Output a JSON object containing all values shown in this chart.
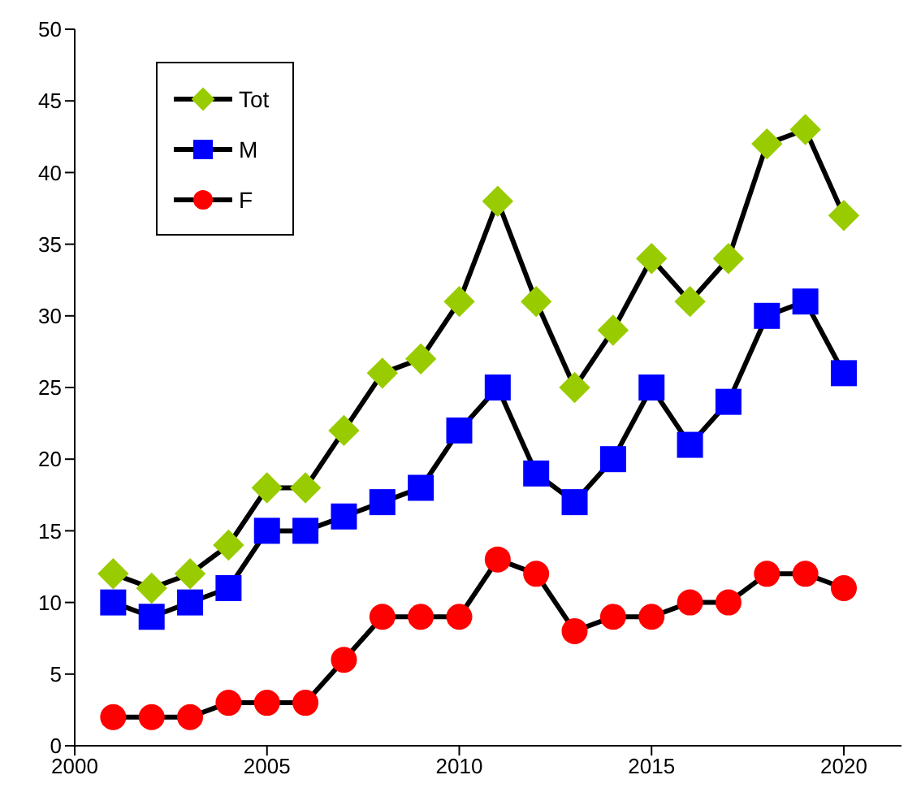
{
  "chart_data": {
    "type": "line",
    "x": [
      2001,
      2002,
      2003,
      2004,
      2005,
      2006,
      2007,
      2008,
      2009,
      2010,
      2011,
      2012,
      2013,
      2014,
      2015,
      2016,
      2017,
      2018,
      2019,
      2020
    ],
    "series": [
      {
        "name": "Tot",
        "color": "#99cc00",
        "marker": "diamond",
        "values": [
          12,
          11,
          12,
          14,
          18,
          18,
          22,
          26,
          27,
          31,
          38,
          31,
          25,
          29,
          34,
          31,
          34,
          42,
          43,
          37
        ]
      },
      {
        "name": "M",
        "color": "#0000ff",
        "marker": "square",
        "values": [
          10,
          9,
          10,
          11,
          15,
          15,
          16,
          17,
          18,
          22,
          25,
          19,
          17,
          20,
          25,
          21,
          24,
          30,
          31,
          26
        ]
      },
      {
        "name": "F",
        "color": "#ff0000",
        "marker": "circle",
        "values": [
          2,
          2,
          2,
          3,
          3,
          3,
          6,
          9,
          9,
          9,
          13,
          12,
          8,
          9,
          9,
          10,
          10,
          12,
          12,
          11
        ]
      }
    ],
    "xlim": [
      2000,
      2021.5
    ],
    "xticks": [
      2000,
      2005,
      2010,
      2015,
      2020
    ],
    "ylim": [
      0,
      50
    ],
    "yticks": [
      0,
      5,
      10,
      15,
      20,
      25,
      30,
      35,
      40,
      45,
      50
    ],
    "grid": false,
    "legend": "top left",
    "line_style": "solid"
  }
}
